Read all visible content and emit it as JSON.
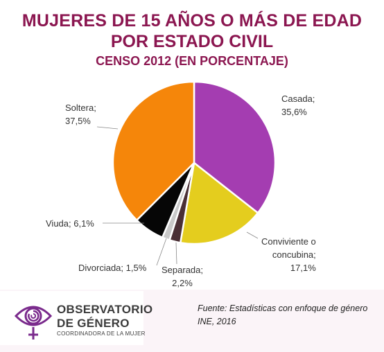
{
  "title": {
    "line1": "MUJERES DE 15 AÑOS O MÁS DE EDAD",
    "line2": "POR ESTADO CIVIL",
    "line3": "CENSO 2012 (EN PORCENTAJE)"
  },
  "chart_data": {
    "type": "pie",
    "title": "MUJERES DE 15 AÑOS O MÁS DE EDAD POR ESTADO CIVIL CENSO 2012 (EN PORCENTAJE)",
    "slices": [
      {
        "label": "Casada",
        "value": 35.6,
        "color": "#a43db1"
      },
      {
        "label": "Conviviente o concubina",
        "value": 17.1,
        "color": "#e4cd1e"
      },
      {
        "label": "Separada",
        "value": 2.2,
        "color": "#4a2f35"
      },
      {
        "label": "Divorciada",
        "value": 1.5,
        "color": "#c9c9c9"
      },
      {
        "label": "Viuda",
        "value": 6.1,
        "color": "#060606"
      },
      {
        "label": "Soltera",
        "value": 37.5,
        "color": "#f5860a"
      }
    ]
  },
  "labels": {
    "soltera_1": "Soltera;",
    "soltera_2": "37,5%",
    "casada_1": "Casada;",
    "casada_2": "35,6%",
    "conviviente_1": "Conviviente o",
    "conviviente_2": "concubina;",
    "conviviente_3": "17,1%",
    "viuda": "Viuda; 6,1%",
    "divorciada": "Divorciada; 1,5%",
    "separada_1": "Separada;",
    "separada_2": "2,2%"
  },
  "logo": {
    "line1": "OBSERVATORIO",
    "line2": "DE GÉNERO",
    "line3": "COORDINADORA DE LA MUJER",
    "color": "#7a2a8c"
  },
  "source": {
    "line1": "Fuente: Estadísticas con enfoque de género",
    "line2": "INE, 2016"
  }
}
